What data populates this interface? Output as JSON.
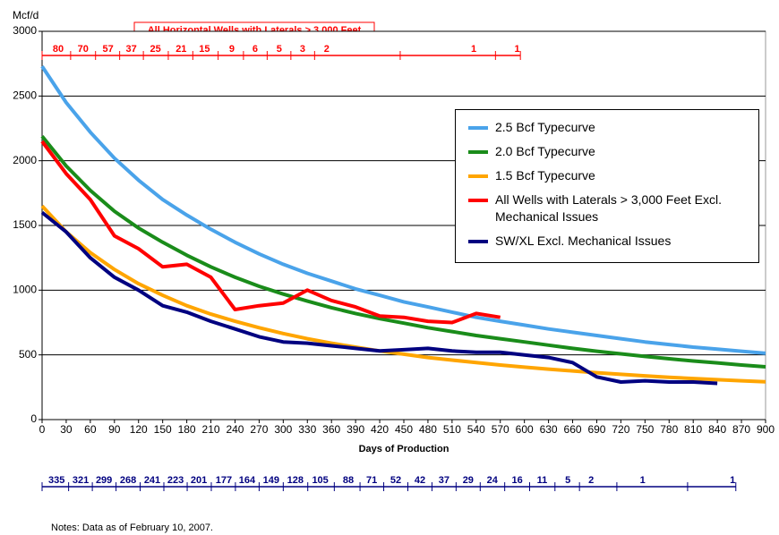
{
  "chart_data": {
    "type": "line",
    "title": "All Horizontal Wells with Laterals > 3,000 Feet",
    "y_label": "Mcf/d",
    "x_label": "Days of Production",
    "note": "Notes:  Data as of February 10, 2007.",
    "x": [
      0,
      30,
      60,
      90,
      120,
      150,
      180,
      210,
      240,
      270,
      300,
      330,
      360,
      390,
      420,
      450,
      480,
      510,
      540,
      570,
      600,
      630,
      660,
      690,
      720,
      750,
      780,
      810,
      840,
      870,
      900
    ],
    "xlim": [
      0,
      900
    ],
    "xticks": [
      0,
      30,
      60,
      90,
      120,
      150,
      180,
      210,
      240,
      270,
      300,
      330,
      360,
      390,
      420,
      450,
      480,
      510,
      540,
      570,
      600,
      630,
      660,
      690,
      720,
      750,
      780,
      810,
      840,
      870,
      900
    ],
    "ylim": [
      0,
      3000
    ],
    "yticks": [
      0,
      500,
      1000,
      1500,
      2000,
      2500,
      3000
    ],
    "grid": true,
    "series": [
      {
        "name": "2.5 Bcf Typecurve",
        "color": "#4aa3ea",
        "values": [
          2730,
          2450,
          2220,
          2020,
          1850,
          1700,
          1580,
          1470,
          1370,
          1280,
          1200,
          1130,
          1070,
          1010,
          960,
          910,
          870,
          830,
          790,
          760,
          730,
          700,
          675,
          650,
          625,
          600,
          580,
          560,
          545,
          528,
          512
        ]
      },
      {
        "name": "2.0 Bcf Typecurve",
        "color": "#1a8c1a",
        "values": [
          2190,
          1960,
          1770,
          1610,
          1480,
          1370,
          1270,
          1180,
          1100,
          1030,
          970,
          915,
          865,
          820,
          780,
          745,
          710,
          680,
          650,
          625,
          600,
          575,
          550,
          528,
          508,
          488,
          470,
          453,
          438,
          422,
          408
        ]
      },
      {
        "name": "1.5 Bcf Typecurve",
        "color": "#ffa500",
        "values": [
          1650,
          1450,
          1290,
          1160,
          1050,
          960,
          880,
          815,
          760,
          710,
          665,
          625,
          590,
          560,
          530,
          505,
          480,
          460,
          440,
          422,
          405,
          390,
          376,
          362,
          350,
          338,
          327,
          317,
          308,
          300,
          292
        ]
      },
      {
        "name": "All Wells with Laterals > 3,000 Feet Excl. Mechanical Issues",
        "color": "#ff0000",
        "values": [
          2150,
          1900,
          1700,
          1420,
          1320,
          1180,
          1200,
          1100,
          850,
          880,
          900,
          1000,
          920,
          870,
          800,
          790,
          760,
          750,
          820,
          790,
          null,
          null,
          null,
          null,
          null,
          null,
          null,
          null,
          null,
          null,
          null
        ]
      },
      {
        "name": "SW/XL Excl. Mechanical Issues",
        "color": "#000080",
        "values": [
          1600,
          1450,
          1250,
          1100,
          1000,
          880,
          830,
          760,
          700,
          640,
          600,
          590,
          570,
          550,
          530,
          540,
          550,
          530,
          520,
          520,
          500,
          480,
          440,
          330,
          290,
          300,
          290,
          290,
          280,
          null,
          null
        ]
      }
    ],
    "top_counts": {
      "color": "#ff0000",
      "x": [
        20,
        51,
        82,
        111,
        141,
        173,
        202,
        236,
        265,
        295,
        324,
        354,
        537,
        591
      ],
      "labels": [
        80,
        70,
        57,
        37,
        25,
        21,
        15,
        9,
        6,
        5,
        3,
        2,
        1,
        1
      ]
    },
    "bottom_counts": {
      "color": "#000080",
      "x": [
        18,
        48,
        77,
        107,
        137,
        166,
        195,
        226,
        255,
        285,
        315,
        346,
        381,
        410,
        440,
        470,
        500,
        530,
        560,
        591,
        622,
        654,
        683,
        747,
        859
      ],
      "labels": [
        335,
        321,
        299,
        268,
        241,
        223,
        201,
        177,
        164,
        149,
        128,
        105,
        88,
        71,
        52,
        42,
        37,
        29,
        24,
        16,
        11,
        5,
        2,
        1,
        1
      ]
    }
  }
}
